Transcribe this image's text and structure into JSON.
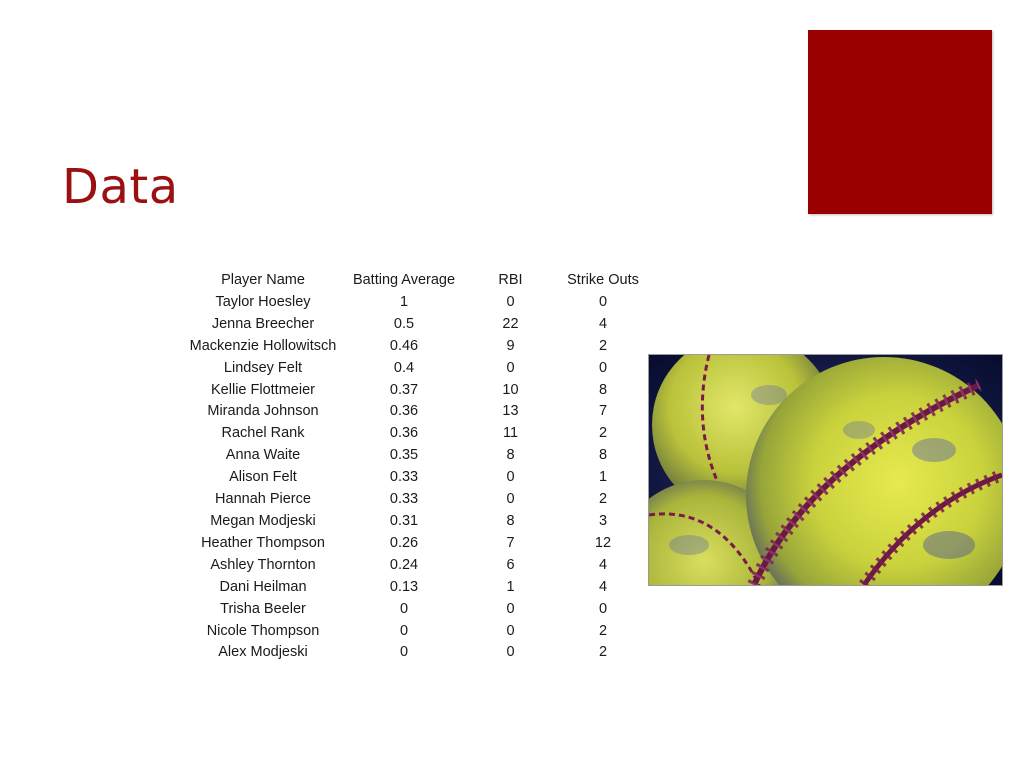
{
  "slide": {
    "title": "Data",
    "accent_color": "#9b0000"
  },
  "table": {
    "headers": [
      "Player Name",
      "Batting Average",
      "RBI",
      "Strike Outs"
    ],
    "rows": [
      [
        "Taylor Hoesley",
        "1",
        "0",
        "0"
      ],
      [
        "Jenna Breecher",
        "0.5",
        "22",
        "4"
      ],
      [
        "Mackenzie Hollowitsch",
        "0.46",
        "9",
        "2"
      ],
      [
        "Lindsey Felt",
        "0.4",
        "0",
        "0"
      ],
      [
        "Kellie Flottmeier",
        "0.37",
        "10",
        "8"
      ],
      [
        "Miranda Johnson",
        "0.36",
        "13",
        "7"
      ],
      [
        "Rachel Rank",
        "0.36",
        "11",
        "2"
      ],
      [
        "Anna Waite",
        "0.35",
        "8",
        "8"
      ],
      [
        "Alison Felt",
        "0.33",
        "0",
        "1"
      ],
      [
        "Hannah Pierce",
        "0.33",
        "0",
        "2"
      ],
      [
        "Megan Modjeski",
        "0.31",
        "8",
        "3"
      ],
      [
        "Heather Thompson",
        "0.26",
        "7",
        "12"
      ],
      [
        "Ashley Thornton",
        "0.24",
        "6",
        "4"
      ],
      [
        "Dani Heilman",
        "0.13",
        "1",
        "4"
      ],
      [
        "Trisha Beeler",
        "0",
        "0",
        "0"
      ],
      [
        "Nicole Thompson",
        "0",
        "0",
        "2"
      ],
      [
        "Alex Modjeski",
        "0",
        "0",
        "2"
      ]
    ]
  },
  "image": {
    "icon": "softball-photo",
    "colors": {
      "ball": "#cdd43a",
      "stitch": "#7a1b4a",
      "background": "#0c1640"
    }
  }
}
